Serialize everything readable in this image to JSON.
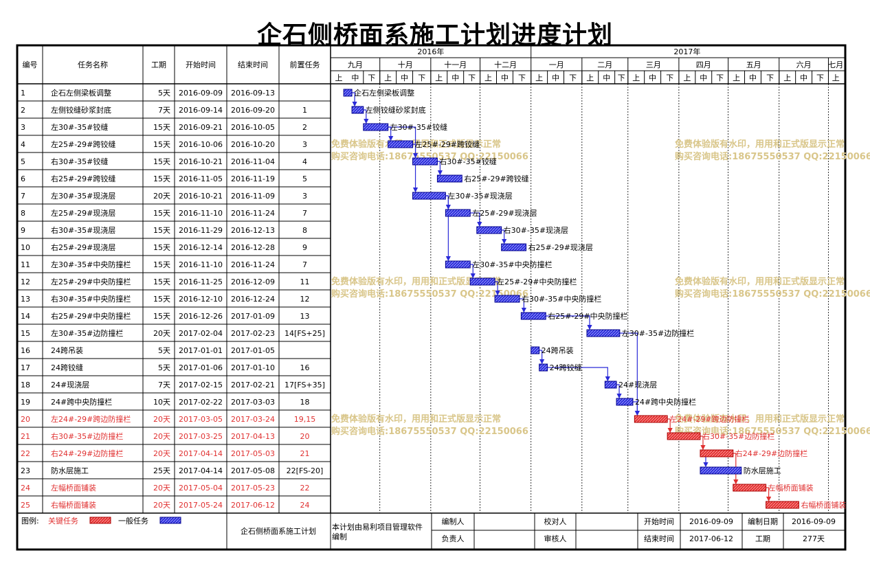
{
  "page": {
    "title": "企石侧桥面系施工计划进度计划"
  },
  "colors": {
    "critical": "#e03030",
    "normal": "#2a2ad8",
    "watermark": "#d9c68a",
    "grid": "#000000"
  },
  "table": {
    "headers": [
      "编号",
      "任务名称",
      "工期",
      "开始时间",
      "结束时间",
      "前置任务"
    ]
  },
  "timeline": {
    "years": [
      {
        "label": "2016年",
        "start": "2016-09-01",
        "end": "2017-01-01"
      },
      {
        "label": "2017年",
        "start": "2017-01-01",
        "end": "2017-07-10"
      }
    ],
    "months": [
      {
        "label": "九月",
        "start": "2016-09-01",
        "end": "2016-10-01"
      },
      {
        "label": "十月",
        "start": "2016-10-01",
        "end": "2016-11-01"
      },
      {
        "label": "十一月",
        "start": "2016-11-01",
        "end": "2016-12-01"
      },
      {
        "label": "十二月",
        "start": "2016-12-01",
        "end": "2017-01-01"
      },
      {
        "label": "一月",
        "start": "2017-01-01",
        "end": "2017-02-01"
      },
      {
        "label": "二月",
        "start": "2017-02-01",
        "end": "2017-03-01"
      },
      {
        "label": "三月",
        "start": "2017-03-01",
        "end": "2017-04-01"
      },
      {
        "label": "四月",
        "start": "2017-04-01",
        "end": "2017-05-01"
      },
      {
        "label": "五月",
        "start": "2017-05-01",
        "end": "2017-06-01"
      },
      {
        "label": "六月",
        "start": "2017-06-01",
        "end": "2017-07-01"
      },
      {
        "label": "七月",
        "start": "2017-07-01",
        "end": "2017-07-10"
      }
    ],
    "dekads": [
      "上",
      "中",
      "下"
    ],
    "axis_start": "2016-09-01",
    "axis_end": "2017-07-10"
  },
  "chart_data": {
    "type": "gantt",
    "title": "企石侧桥面系施工计划进度计划",
    "tasks": [
      {
        "id": "1",
        "name": "企石左侧梁板调整",
        "duration": "5天",
        "start": "2016-09-09",
        "end": "2016-09-13",
        "pred": "",
        "critical": false
      },
      {
        "id": "2",
        "name": "左侧铰缝砂浆封底",
        "duration": "7天",
        "start": "2016-09-14",
        "end": "2016-09-20",
        "pred": "1",
        "critical": false
      },
      {
        "id": "3",
        "name": "左30#-35#铰缝",
        "duration": "15天",
        "start": "2016-09-21",
        "end": "2016-10-05",
        "pred": "2",
        "critical": false
      },
      {
        "id": "4",
        "name": "左25#-29#跨铰缝",
        "duration": "15天",
        "start": "2016-10-06",
        "end": "2016-10-20",
        "pred": "3",
        "critical": false
      },
      {
        "id": "5",
        "name": "右30#-35#铰缝",
        "duration": "15天",
        "start": "2016-10-21",
        "end": "2016-11-04",
        "pred": "4",
        "critical": false
      },
      {
        "id": "6",
        "name": "右25#-29#跨铰缝",
        "duration": "15天",
        "start": "2016-11-05",
        "end": "2016-11-19",
        "pred": "5",
        "critical": false
      },
      {
        "id": "7",
        "name": "左30#-35#现浇层",
        "duration": "20天",
        "start": "2016-10-21",
        "end": "2016-11-09",
        "pred": "3",
        "critical": false
      },
      {
        "id": "8",
        "name": "左25#-29#现浇层",
        "duration": "15天",
        "start": "2016-11-10",
        "end": "2016-11-24",
        "pred": "7",
        "critical": false
      },
      {
        "id": "9",
        "name": "右30#-35#现浇层",
        "duration": "15天",
        "start": "2016-11-29",
        "end": "2016-12-13",
        "pred": "8",
        "critical": false
      },
      {
        "id": "10",
        "name": "右25#-29#现浇层",
        "duration": "15天",
        "start": "2016-12-14",
        "end": "2016-12-28",
        "pred": "9",
        "critical": false
      },
      {
        "id": "11",
        "name": "左30#-35#中央防撞栏",
        "duration": "15天",
        "start": "2016-11-10",
        "end": "2016-11-24",
        "pred": "7",
        "critical": false
      },
      {
        "id": "12",
        "name": "左25#-29#中央防撞栏",
        "duration": "15天",
        "start": "2016-11-25",
        "end": "2016-12-09",
        "pred": "11",
        "critical": false
      },
      {
        "id": "13",
        "name": "右30#-35#中央防撞栏",
        "duration": "15天",
        "start": "2016-12-10",
        "end": "2016-12-24",
        "pred": "12",
        "critical": false
      },
      {
        "id": "14",
        "name": "右25#-29#中央防撞栏",
        "duration": "15天",
        "start": "2016-12-26",
        "end": "2017-01-09",
        "pred": "13",
        "critical": false
      },
      {
        "id": "15",
        "name": "左30#-35#边防撞栏",
        "duration": "20天",
        "start": "2017-02-04",
        "end": "2017-02-23",
        "pred": "14[FS+25]",
        "critical": false
      },
      {
        "id": "16",
        "name": "24跨吊装",
        "duration": "5天",
        "start": "2017-01-01",
        "end": "2017-01-05",
        "pred": "",
        "critical": false
      },
      {
        "id": "17",
        "name": "24跨铰缝",
        "duration": "5天",
        "start": "2017-01-06",
        "end": "2017-01-10",
        "pred": "16",
        "critical": false
      },
      {
        "id": "18",
        "name": "24#现浇层",
        "duration": "7天",
        "start": "2017-02-15",
        "end": "2017-02-21",
        "pred": "17[FS+35]",
        "critical": false
      },
      {
        "id": "19",
        "name": "24#跨中央防撞栏",
        "duration": "10天",
        "start": "2017-02-22",
        "end": "2017-03-03",
        "pred": "18",
        "critical": false
      },
      {
        "id": "20",
        "name": "左24#-29#跨边防撞栏",
        "duration": "20天",
        "start": "2017-03-05",
        "end": "2017-03-24",
        "pred": "19,15",
        "critical": true
      },
      {
        "id": "21",
        "name": "右30#-35#边防撞栏",
        "duration": "20天",
        "start": "2017-03-25",
        "end": "2017-04-13",
        "pred": "20",
        "critical": true
      },
      {
        "id": "22",
        "name": "右24#-29#边防撞栏",
        "duration": "20天",
        "start": "2017-04-14",
        "end": "2017-05-03",
        "pred": "21",
        "critical": true
      },
      {
        "id": "23",
        "name": "防水层施工",
        "duration": "25天",
        "start": "2017-04-14",
        "end": "2017-05-08",
        "pred": "22[FS-20]",
        "critical": false
      },
      {
        "id": "24",
        "name": "左幅桥面铺装",
        "duration": "20天",
        "start": "2017-05-04",
        "end": "2017-05-23",
        "pred": "22",
        "critical": true
      },
      {
        "id": "25",
        "name": "右幅桥面铺装",
        "duration": "20天",
        "start": "2017-05-24",
        "end": "2017-06-12",
        "pred": "24",
        "critical": true
      }
    ],
    "bar_labels": [
      "企石左侧梁板调整",
      "左侧铰缝砂浆封底",
      "左30#-35#铰缝",
      "左25#-29#跨铰缝",
      "右30#-35#铰缝",
      "右25#-29#跨铰缝",
      "左30#-35#现浇层",
      "左25#-29#现浇层",
      "右30#-35#现浇层",
      "右25#-29#现浇层",
      "左30#-35#中央防撞栏",
      "左25#-29#中央防撞栏",
      "右30#-35#中央防撞栏",
      "右25#-29#中央防撞栏",
      "左30#-35#边防撞栏",
      "24跨吊装",
      "24跨铰缝",
      "24#现浇层",
      "24#跨中央防撞栏",
      "左24#-29#跨边防撞栏",
      "右30#-35#边防撞栏",
      "右24#-29#边防撞栏",
      "防水层施工",
      "左幅桥面铺装",
      "右幅桥面铺装"
    ]
  },
  "watermarks": [
    {
      "line1": "免费体验版有水印，用用和正式版显示正常",
      "line2": "购买咨询电话:18675550537 QQ:22150066"
    },
    {
      "line1": "免费体验版有水印，用用和正式版显示正常",
      "line2": "购买咨询电话:18675550537 QQ:22150066"
    },
    {
      "line1": "免费体验版有水印，用用和正式版显示正常",
      "line2": "购买咨询电话:18675550537 QQ:22150066"
    },
    {
      "line1": "免费体验版有水印，用用和正式版显示正常",
      "line2": "购买咨询电话:18675550537 QQ:22150066"
    },
    {
      "line1": "免费体验版有水印，用用和正式版显示正常",
      "line2": "购买咨询电话:18675550537 QQ:22150066"
    },
    {
      "line1": "免费体验版有水印，用用和正式版显示正常",
      "line2": "购买咨询电话:18675550537 QQ:22150066"
    }
  ],
  "footer": {
    "legend_label": "图例:",
    "legend_critical": "关键任务",
    "legend_normal": "一般任务",
    "plan_name": "企石侧桥面系施工计划",
    "software_note": "本计划由易利项目管理软件编制",
    "compiler_label": "编制人",
    "compiler_value": "",
    "responsible_label": "负责人",
    "responsible_value": "",
    "checker_label": "校对人",
    "checker_value": "",
    "reviewer_label": "审核人",
    "reviewer_value": "",
    "start_label": "开始时间",
    "start_value": "2016-09-09",
    "end_label": "结束时间",
    "end_value": "2017-06-12",
    "compile_date_label": "编制日期",
    "compile_date_value": "2016-09-09",
    "duration_label": "工期",
    "duration_value": "277天"
  }
}
